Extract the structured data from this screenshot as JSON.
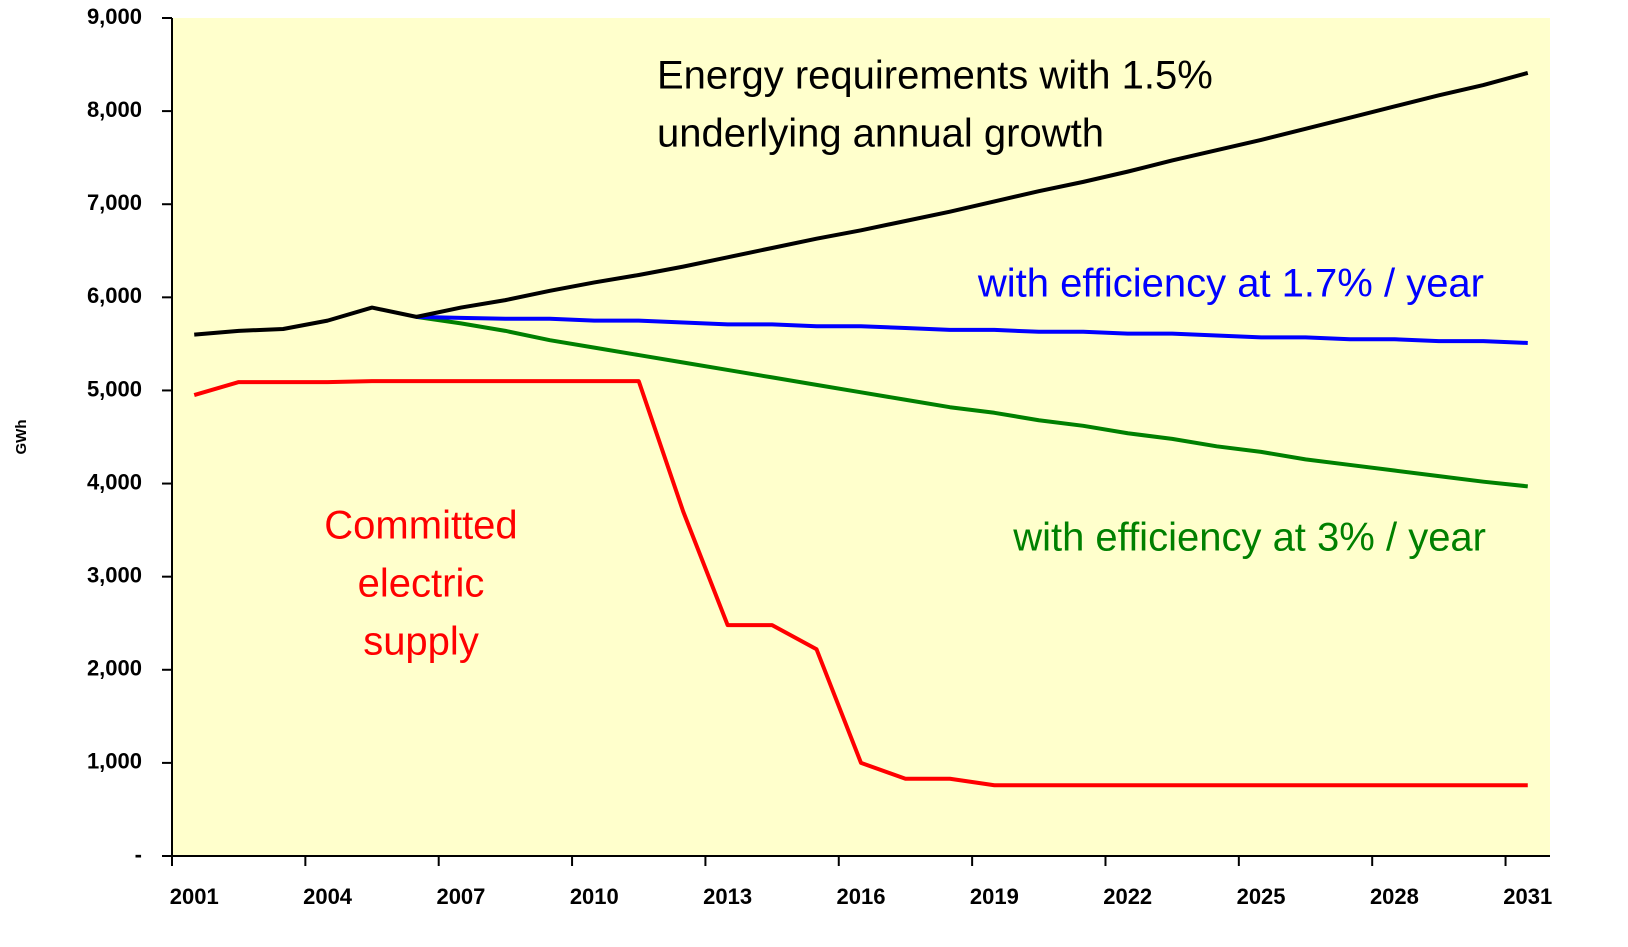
{
  "chart_data": {
    "type": "line",
    "y_label": "GWh",
    "categories": [
      "2001",
      null,
      null,
      "2004",
      null,
      null,
      "2007",
      null,
      null,
      "2010",
      null,
      null,
      "2013",
      null,
      null,
      "2016",
      null,
      null,
      "2019",
      null,
      null,
      "2022",
      null,
      null,
      "2025",
      null,
      null,
      "2028",
      null,
      null,
      "2031"
    ],
    "series": [
      {
        "color": "#ff0000",
        "values": [
          4950,
          5090,
          5090,
          5090,
          5100,
          5100,
          5100,
          5100,
          5100,
          5100,
          5100,
          3700,
          2480,
          2480,
          2220,
          1000,
          830,
          830,
          760,
          760,
          760,
          760,
          760,
          760,
          760,
          760,
          760,
          760,
          760,
          760,
          760
        ]
      },
      {
        "color": "#008000",
        "values": [
          null,
          null,
          null,
          null,
          null,
          5790,
          5720,
          5640,
          5540,
          5460,
          5380,
          5300,
          5220,
          5140,
          5060,
          4980,
          4900,
          4820,
          4760,
          4680,
          4620,
          4540,
          4480,
          4400,
          4340,
          4260,
          4200,
          4140,
          4080,
          4020,
          3970
        ]
      },
      {
        "color": "#0000ff",
        "values": [
          null,
          null,
          null,
          null,
          null,
          5790,
          5780,
          5770,
          5770,
          5750,
          5750,
          5730,
          5710,
          5710,
          5690,
          5690,
          5670,
          5650,
          5650,
          5630,
          5630,
          5610,
          5610,
          5590,
          5570,
          5570,
          5550,
          5550,
          5530,
          5530,
          5510
        ]
      },
      {
        "color": "#000000",
        "values": [
          5600,
          5640,
          5660,
          5750,
          5890,
          5790,
          5890,
          5970,
          6070,
          6160,
          6240,
          6330,
          6430,
          6530,
          6630,
          6720,
          6820,
          6920,
          7030,
          7140,
          7240,
          7350,
          7470,
          7580,
          7690,
          7810,
          7930,
          8050,
          8170,
          8280,
          8410
        ]
      }
    ],
    "annotations": [
      {
        "lines": [
          "Energy requirements with 1.5%",
          "underlying annual growth"
        ],
        "color": "#000000"
      },
      {
        "lines": [
          "with efficiency at 1.7% / year"
        ],
        "color": "#0000ff"
      },
      {
        "lines": [
          "with efficiency at 3% / year"
        ],
        "color": "#008000"
      },
      {
        "lines": [
          "Committed",
          "electric",
          "supply"
        ],
        "color": "#ff0000"
      }
    ],
    "ylim": [
      0,
      9000
    ],
    "yticks": [
      {
        "value": 0,
        "label": "-"
      },
      {
        "value": 1000,
        "label": "1,000"
      },
      {
        "value": 2000,
        "label": "2,000"
      },
      {
        "value": 3000,
        "label": "3,000"
      },
      {
        "value": 4000,
        "label": "4,000"
      },
      {
        "value": 5000,
        "label": "5,000"
      },
      {
        "value": 6000,
        "label": "6,000"
      },
      {
        "value": 7000,
        "label": "7,000"
      },
      {
        "value": 8000,
        "label": "8,000"
      },
      {
        "value": 9000,
        "label": "9,000"
      }
    ],
    "background": "#ffffcc"
  }
}
